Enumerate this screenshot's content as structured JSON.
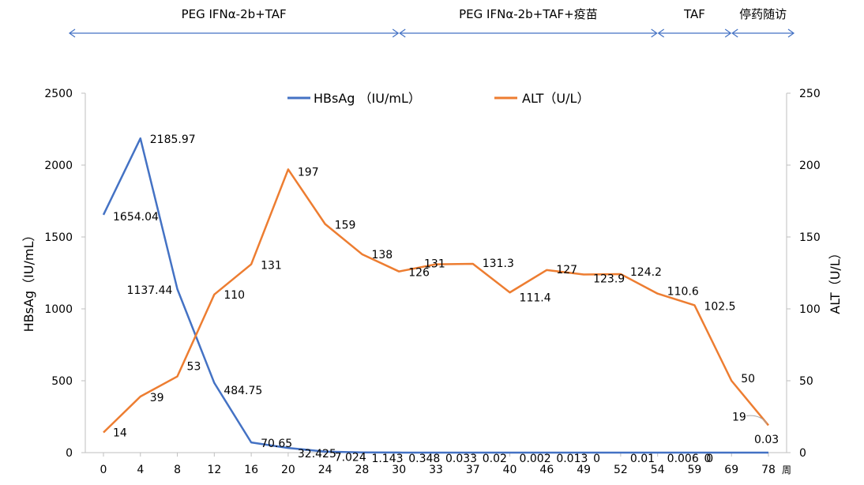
{
  "phases": [
    {
      "label": "PEG IFNα-2b+TAF",
      "from": 0,
      "to": 30
    },
    {
      "label": "PEG IFNα-2b+TAF+疫苗",
      "from": 30,
      "to": 54
    },
    {
      "label": "TAF",
      "from": 54,
      "to": 69
    },
    {
      "label": "停药随访",
      "from": 69,
      "to": 78
    }
  ],
  "colors": {
    "hbsag": "#4472C4",
    "alt": "#ED7D31",
    "arrow": "#4472C4",
    "axis": "#BFBFBF",
    "text": "#000000"
  },
  "chart_data": {
    "type": "line",
    "categories": [
      "0",
      "4",
      "8",
      "12",
      "16",
      "20",
      "24",
      "28",
      "30",
      "33",
      "37",
      "40",
      "46",
      "49",
      "52",
      "54",
      "59",
      "69",
      "78"
    ],
    "x_unit_label": "周",
    "series": [
      {
        "name": "HBsAg （IU/mL）",
        "axis": "left",
        "values": [
          1654.04,
          2185.97,
          1137.44,
          484.75,
          70.65,
          32.425,
          7.024,
          1.143,
          0.348,
          0.033,
          0.02,
          0.002,
          0.013,
          0,
          0.01,
          0.006,
          0,
          0,
          0.03
        ],
        "labels": [
          "1654.04",
          "2185.97",
          "1137.44",
          "484.75",
          "70.65",
          "32.425",
          "7.024",
          "1.143",
          "0.348",
          "0.033",
          "0.02",
          "0.002",
          "0.013",
          "0",
          "0.01",
          "0.006",
          "0",
          "0",
          "0.03"
        ]
      },
      {
        "name": "ALT（U/L）",
        "axis": "right",
        "values": [
          14,
          39,
          53,
          110,
          131,
          197,
          159,
          138,
          126,
          131,
          131.3,
          111.4,
          127,
          123.9,
          124.2,
          110.6,
          102.5,
          50,
          19
        ],
        "labels": [
          "14",
          "39",
          "53",
          "110",
          "131",
          "197",
          "159",
          "138",
          "126",
          "131",
          "131.3",
          "111.4",
          "127",
          "123.9",
          "124.2",
          "110.6",
          "102.5",
          "50",
          "19"
        ]
      }
    ],
    "y_left": {
      "label": "HBsAg（IU/mL）",
      "min": 0,
      "max": 2500,
      "ticks": [
        0,
        500,
        1000,
        1500,
        2000,
        2500
      ]
    },
    "y_right": {
      "label": "ALT（U/L）",
      "min": 0,
      "max": 250,
      "ticks": [
        0,
        50,
        100,
        150,
        200,
        250
      ]
    },
    "legend_position": "top-center",
    "grid": false
  }
}
